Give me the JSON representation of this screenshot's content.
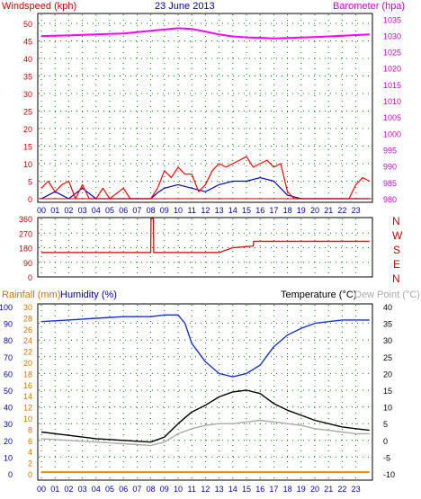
{
  "header": {
    "windspeed_label": "Windspeed (kph)",
    "date": "23 June 2013",
    "barometer_label": "Barometer (hpa)"
  },
  "colors": {
    "wind": "#cc0000",
    "gust": "#ff0000",
    "wind_blue": "#0000cc",
    "wind_green": "#008800",
    "barometer": "#ff00ff",
    "direction": "#cc0000",
    "humidity": "#1a33cc",
    "temperature": "#000000",
    "dew_point": "#aaaaaa",
    "rainfall": "#ff8800",
    "grid": "#008000",
    "axis_text_left": "#0000aa"
  },
  "sections": {
    "rainfall_label": "Rainfall (mm)",
    "humidity_label": "Humidity (%)",
    "temperature_label": "Temperature (°C)",
    "dew_point_label": "Dew Point (°C)"
  },
  "direction_letters": [
    "N",
    "W",
    "S",
    "E",
    "N"
  ],
  "chart_data": [
    {
      "type": "line",
      "title": "23 June 2013",
      "x_ticks": [
        "00",
        "01",
        "02",
        "03",
        "04",
        "05",
        "06",
        "07",
        "08",
        "09",
        "10",
        "11",
        "12",
        "13",
        "14",
        "15",
        "16",
        "17",
        "18",
        "19",
        "20",
        "21",
        "22",
        "23"
      ],
      "y_left_label": "Windspeed (kph)",
      "y_left_ticks": [
        0,
        5,
        10,
        15,
        20,
        25,
        30,
        35,
        40,
        45,
        50
      ],
      "ylim_left": [
        0,
        50
      ],
      "y_right_label": "Barometer (hpa)",
      "y_right_ticks": [
        980,
        985,
        990,
        995,
        1000,
        1005,
        1010,
        1015,
        1020,
        1025,
        1030,
        1035
      ],
      "ylim_right": [
        980,
        1037
      ],
      "grid": true,
      "series": [
        {
          "name": "Barometer (hpa)",
          "axis": "right",
          "points": [
            [
              0,
              1029.8
            ],
            [
              2,
              1030.0
            ],
            [
              4,
              1030.3
            ],
            [
              6,
              1030.6
            ],
            [
              8,
              1031.4
            ],
            [
              10,
              1032.2
            ],
            [
              11,
              1032.0
            ],
            [
              12,
              1031.2
            ],
            [
              13,
              1030.3
            ],
            [
              14,
              1029.7
            ],
            [
              15,
              1029.4
            ],
            [
              16,
              1029.3
            ],
            [
              17,
              1029.1
            ],
            [
              18,
              1029.2
            ],
            [
              20,
              1029.5
            ],
            [
              22,
              1029.9
            ],
            [
              24,
              1030.3
            ]
          ]
        },
        {
          "name": "Windspeed (kph)",
          "axis": "left",
          "points": [
            [
              0,
              0
            ],
            [
              1,
              2
            ],
            [
              2,
              0
            ],
            [
              3,
              3
            ],
            [
              4,
              0
            ],
            [
              6,
              0
            ],
            [
              8,
              0
            ],
            [
              8.6,
              2
            ],
            [
              9,
              3
            ],
            [
              10,
              4
            ],
            [
              11,
              3
            ],
            [
              12,
              2
            ],
            [
              13,
              4
            ],
            [
              14,
              5
            ],
            [
              15,
              5
            ],
            [
              16,
              6
            ],
            [
              17,
              5
            ],
            [
              18,
              1
            ],
            [
              19,
              0
            ],
            [
              24,
              0
            ]
          ]
        },
        {
          "name": "Gust (kph)",
          "axis": "left",
          "points": [
            [
              0,
              3
            ],
            [
              0.5,
              5
            ],
            [
              1,
              2
            ],
            [
              1.5,
              4
            ],
            [
              2,
              5
            ],
            [
              2.5,
              0
            ],
            [
              3,
              4
            ],
            [
              3.5,
              0
            ],
            [
              4,
              0
            ],
            [
              4.5,
              3
            ],
            [
              5,
              0
            ],
            [
              6,
              3
            ],
            [
              6.5,
              0
            ],
            [
              8,
              0
            ],
            [
              8.5,
              3
            ],
            [
              9,
              8
            ],
            [
              9.5,
              6
            ],
            [
              10,
              9
            ],
            [
              10.5,
              7
            ],
            [
              11,
              7
            ],
            [
              11.5,
              2
            ],
            [
              12,
              4
            ],
            [
              12.5,
              8
            ],
            [
              13,
              10
            ],
            [
              13.5,
              9
            ],
            [
              14,
              10
            ],
            [
              14.5,
              11
            ],
            [
              15,
              12
            ],
            [
              15.5,
              9
            ],
            [
              16,
              10
            ],
            [
              16.5,
              11
            ],
            [
              17,
              9
            ],
            [
              17.5,
              10
            ],
            [
              18,
              2
            ],
            [
              18.5,
              0
            ],
            [
              22.5,
              0
            ],
            [
              23,
              4
            ],
            [
              23.5,
              6
            ],
            [
              24,
              5
            ]
          ]
        }
      ]
    },
    {
      "type": "line",
      "y_ticks": [
        0,
        90,
        180,
        270,
        360
      ],
      "ylim": [
        0,
        360
      ],
      "grid": true,
      "series": [
        {
          "name": "Wind direction",
          "points": [
            [
              0,
              150
            ],
            [
              8,
              150
            ],
            [
              8.02,
              360
            ],
            [
              8.2,
              360
            ],
            [
              8.22,
              150
            ],
            [
              13,
              150
            ],
            [
              13.5,
              165
            ],
            [
              14,
              180
            ],
            [
              15.5,
              190
            ],
            [
              15.52,
              220
            ],
            [
              24,
              220
            ]
          ]
        }
      ]
    },
    {
      "type": "line",
      "x_ticks": [
        "00",
        "01",
        "02",
        "03",
        "04",
        "05",
        "06",
        "07",
        "08",
        "09",
        "10",
        "11",
        "12",
        "13",
        "14",
        "15",
        "16",
        "17",
        "18",
        "19",
        "20",
        "21",
        "22",
        "23"
      ],
      "y_left_ticks": [
        0,
        10,
        20,
        30,
        40,
        50,
        60,
        70,
        80,
        90,
        100
      ],
      "y_left_label": "Humidity (%)",
      "y_rain_ticks": [
        0,
        2,
        4,
        6,
        8,
        10,
        12,
        14,
        16,
        18,
        20,
        22,
        24,
        26,
        28,
        30
      ],
      "y_rain_label": "Rainfall (mm)",
      "y_right_ticks": [
        -10,
        -5,
        0,
        5,
        10,
        15,
        20,
        25,
        30,
        35,
        40
      ],
      "y_right_label": "Temperature (°C)",
      "ylim_left": [
        0,
        100
      ],
      "ylim_right": [
        -10,
        40
      ],
      "grid": true,
      "series": [
        {
          "name": "Humidity (%)",
          "axis": "left",
          "points": [
            [
              0,
              91
            ],
            [
              2,
              92
            ],
            [
              4,
              93
            ],
            [
              6,
              94
            ],
            [
              8,
              94
            ],
            [
              9,
              95
            ],
            [
              10,
              95
            ],
            [
              10.5,
              90
            ],
            [
              11,
              78
            ],
            [
              12,
              67
            ],
            [
              13,
              60
            ],
            [
              14,
              58
            ],
            [
              15,
              60
            ],
            [
              16,
              65
            ],
            [
              17,
              76
            ],
            [
              18,
              83
            ],
            [
              19,
              87
            ],
            [
              20,
              90
            ],
            [
              21,
              91
            ],
            [
              22,
              92
            ],
            [
              23,
              92
            ],
            [
              24,
              92
            ]
          ]
        },
        {
          "name": "Temperature (°C)",
          "axis": "right",
          "points": [
            [
              0,
              2.5
            ],
            [
              2,
              1.5
            ],
            [
              4,
              0.5
            ],
            [
              6,
              0
            ],
            [
              8,
              -0.5
            ],
            [
              9,
              1
            ],
            [
              10,
              5
            ],
            [
              11,
              8.5
            ],
            [
              12,
              10.5
            ],
            [
              13,
              13
            ],
            [
              14,
              14.5
            ],
            [
              15,
              15
            ],
            [
              16,
              14
            ],
            [
              17,
              11
            ],
            [
              18,
              9
            ],
            [
              19,
              7.5
            ],
            [
              20,
              6
            ],
            [
              21,
              5
            ],
            [
              22,
              4
            ],
            [
              23,
              3.5
            ],
            [
              24,
              3
            ]
          ]
        },
        {
          "name": "Dew Point (°C)",
          "axis": "right",
          "points": [
            [
              0,
              0.5
            ],
            [
              2,
              0
            ],
            [
              4,
              -0.5
            ],
            [
              6,
              -1
            ],
            [
              8,
              -1.5
            ],
            [
              9,
              -0.5
            ],
            [
              10,
              2
            ],
            [
              11,
              3.5
            ],
            [
              12,
              4.5
            ],
            [
              13,
              5
            ],
            [
              14,
              5
            ],
            [
              15,
              5.5
            ],
            [
              16,
              6
            ],
            [
              17,
              5.5
            ],
            [
              18,
              5
            ],
            [
              19,
              4.5
            ],
            [
              20,
              3.5
            ],
            [
              21,
              3
            ],
            [
              22,
              2.5
            ],
            [
              23,
              2
            ],
            [
              24,
              2
            ]
          ]
        },
        {
          "name": "Rainfall (mm)",
          "axis": "rain",
          "points": [
            [
              0,
              0.3
            ],
            [
              24,
              0.3
            ]
          ]
        }
      ]
    }
  ]
}
